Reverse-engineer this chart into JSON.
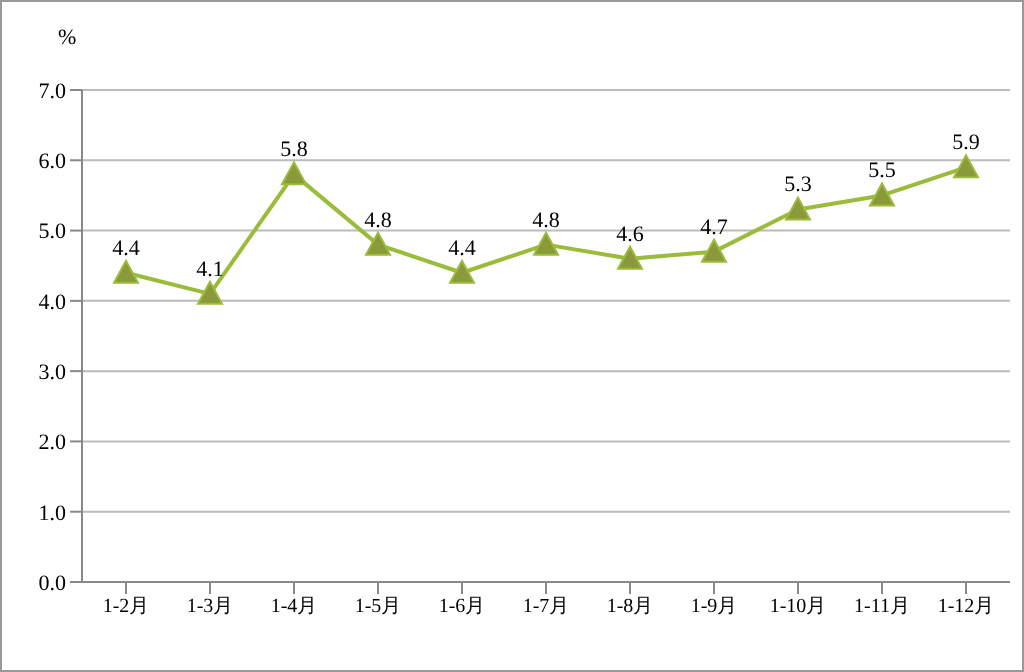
{
  "chart_data": {
    "type": "line",
    "ylabel": "%",
    "categories": [
      "1-2月",
      "1-3月",
      "1-4月",
      "1-5月",
      "1-6月",
      "1-7月",
      "1-8月",
      "1-9月",
      "1-10月",
      "1-11月",
      "1-12月"
    ],
    "series": [
      {
        "color": "#9bbb3b",
        "values": [
          4.4,
          4.1,
          5.8,
          4.8,
          4.4,
          4.8,
          4.6,
          4.7,
          5.3,
          5.5,
          5.9
        ]
      }
    ],
    "ylim": [
      0,
      7
    ],
    "yticks": [
      {
        "value": 0,
        "label": "0.0"
      },
      {
        "value": 1,
        "label": "1.0"
      },
      {
        "value": 2,
        "label": "2.0"
      },
      {
        "value": 3,
        "label": "3.0"
      },
      {
        "value": 4,
        "label": "4.0"
      },
      {
        "value": 5,
        "label": "5.0"
      },
      {
        "value": 6,
        "label": "6.0"
      },
      {
        "value": 7,
        "label": "7.0"
      }
    ],
    "grid": "y",
    "marker": "triangle",
    "line_style": "solid",
    "data_labels": true,
    "legend": false
  }
}
